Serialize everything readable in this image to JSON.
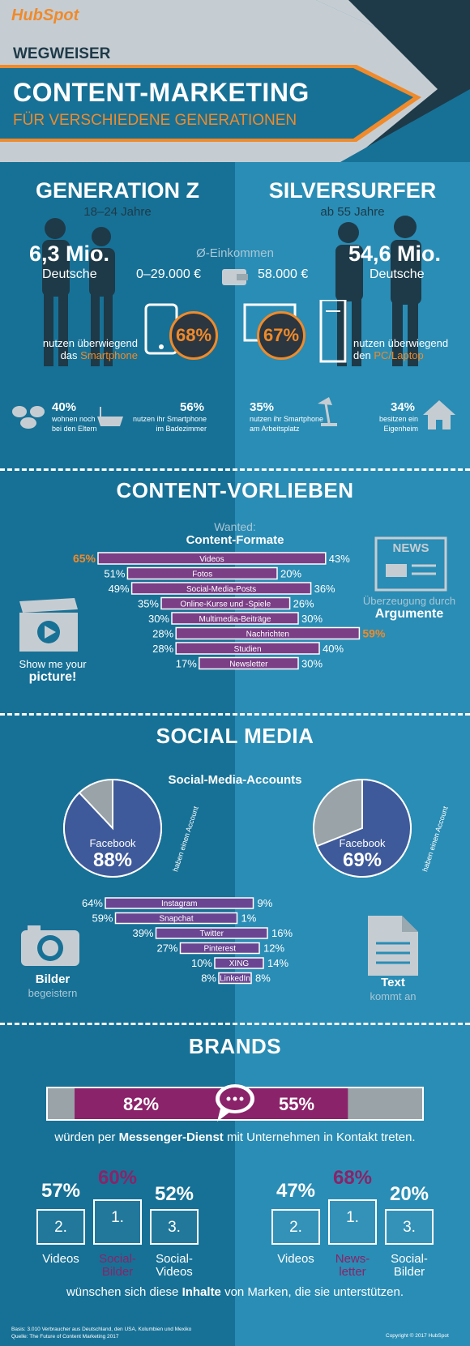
{
  "header": {
    "brand": "HubSpot",
    "kicker": "WEGWEISER",
    "title": "CONTENT-MARKETING",
    "subtitle": "FÜR VERSCHIEDENE GENERATIONEN"
  },
  "genz": {
    "title": "GENERATION Z",
    "age": "18–24 Jahre",
    "count": "6,3 Mio.",
    "count_label": "Deutsche",
    "income": "0–29.000 €",
    "device_pct": "68%",
    "device_text1": "nutzen überwiegend",
    "device_text2": "das",
    "device_name": "Smartphone",
    "stat1_pct": "40%",
    "stat1_l1": "wohnen noch",
    "stat1_l2": "bei den Eltern",
    "stat2_pct": "56%",
    "stat2_l1": "nutzen ihr Smartphone",
    "stat2_l2": "im Badezimmer"
  },
  "silver": {
    "title": "SILVERSURFER",
    "age": "ab 55 Jahre",
    "count": "54,6 Mio.",
    "count_label": "Deutsche",
    "income": "58.000 €",
    "device_pct": "67%",
    "device_text1": "nutzen überwiegend",
    "device_text2": "den",
    "device_name": "PC/Laptop",
    "stat1_pct": "35%",
    "stat1_l1": "nutzen ihr Smartphone",
    "stat1_l2": "am Arbeitsplatz",
    "stat2_pct": "34%",
    "stat2_l1": "besitzen ein",
    "stat2_l2": "Eigenheim"
  },
  "income_label": "Ø-Einkommen",
  "content": {
    "title": "CONTENT-VORLIEBEN",
    "wanted": "Wanted:",
    "formats": "Content-Formate",
    "left_caption1": "Show me your",
    "left_caption2": "picture!",
    "right_caption1": "Überzeugung durch",
    "right_caption2": "Argumente",
    "news_label": "NEWS",
    "rows": [
      {
        "label": "Videos",
        "left": 65,
        "right": 43,
        "lp": "65%",
        "rp": "43%",
        "lhi": true,
        "rhi": false
      },
      {
        "label": "Fotos",
        "left": 51,
        "right": 20,
        "lp": "51%",
        "rp": "20%",
        "lhi": false,
        "rhi": false
      },
      {
        "label": "Social-Media-Posts",
        "left": 49,
        "right": 36,
        "lp": "49%",
        "rp": "36%",
        "lhi": false,
        "rhi": false
      },
      {
        "label": "Online-Kurse und -Spiele",
        "left": 35,
        "right": 26,
        "lp": "35%",
        "rp": "26%",
        "lhi": false,
        "rhi": false
      },
      {
        "label": "Multimedia-Beiträge",
        "left": 30,
        "right": 30,
        "lp": "30%",
        "rp": "30%",
        "lhi": false,
        "rhi": false
      },
      {
        "label": "Nachrichten",
        "left": 28,
        "right": 59,
        "lp": "28%",
        "rp": "59%",
        "lhi": false,
        "rhi": true
      },
      {
        "label": "Studien",
        "left": 28,
        "right": 40,
        "lp": "28%",
        "rp": "40%",
        "lhi": false,
        "rhi": false
      },
      {
        "label": "Newsletter",
        "left": 17,
        "right": 30,
        "lp": "17%",
        "rp": "30%",
        "lhi": false,
        "rhi": false
      }
    ]
  },
  "social": {
    "title": "SOCIAL MEDIA",
    "accounts": "Social-Media-Accounts",
    "pie_left": {
      "name": "Facebook",
      "pct": "88%",
      "value": 88,
      "note": "haben einen Account"
    },
    "pie_right": {
      "name": "Facebook",
      "pct": "69%",
      "value": 69,
      "note": "haben einen Account"
    },
    "left_caption1": "Bilder",
    "left_caption2": "begeistern",
    "right_caption1": "Text",
    "right_caption2": "kommt an",
    "rows": [
      {
        "label": "Instagram",
        "left": 64,
        "right": 9,
        "lp": "64%",
        "rp": "9%"
      },
      {
        "label": "Snapchat",
        "left": 59,
        "right": 1,
        "lp": "59%",
        "rp": "1%"
      },
      {
        "label": "Twitter",
        "left": 39,
        "right": 16,
        "lp": "39%",
        "rp": "16%"
      },
      {
        "label": "Pinterest",
        "left": 27,
        "right": 12,
        "lp": "27%",
        "rp": "12%"
      },
      {
        "label": "XING",
        "left": 10,
        "right": 14,
        "lp": "10%",
        "rp": "14%"
      },
      {
        "label": "LinkedIn",
        "left": 8,
        "right": 8,
        "lp": "8%",
        "rp": "8%"
      }
    ]
  },
  "brands": {
    "title": "BRANDS",
    "messenger_left": "82%",
    "messenger_right": "55%",
    "messenger_left_value": 82,
    "messenger_right_value": 55,
    "messenger_text_a": "würden per ",
    "messenger_text_b": "Messenger-Dienst",
    "messenger_text_c": " mit Unternehmen in Kontakt treten.",
    "left_podium": [
      {
        "pct": "57%",
        "rank": "2.",
        "label1": "Videos",
        "label2": ""
      },
      {
        "pct": "60%",
        "rank": "1.",
        "label1": "Social-",
        "label2": "Bilder"
      },
      {
        "pct": "52%",
        "rank": "3.",
        "label1": "Social-",
        "label2": "Videos"
      }
    ],
    "right_podium": [
      {
        "pct": "47%",
        "rank": "2.",
        "label1": "Videos",
        "label2": ""
      },
      {
        "pct": "68%",
        "rank": "1.",
        "label1": "News-",
        "label2": "letter"
      },
      {
        "pct": "20%",
        "rank": "3.",
        "label1": "Social-",
        "label2": "Bilder"
      }
    ],
    "wish_a": "wünschen sich diese ",
    "wish_b": "Inhalte",
    "wish_c": " von Marken, die sie unterstützen."
  },
  "footer": {
    "basis": "Basis: 3.010 Verbraucher aus Deutschland, den USA, Kolumbien und Mexiko",
    "source": "Quelle: The Future of Content Marketing 2017",
    "copyright": "Copyright © 2017 HubSpot"
  },
  "colors": {
    "orange": "#f08a2a",
    "purple": "#7b3f86",
    "magenta": "#8a2369",
    "dark": "#1e3a48"
  }
}
